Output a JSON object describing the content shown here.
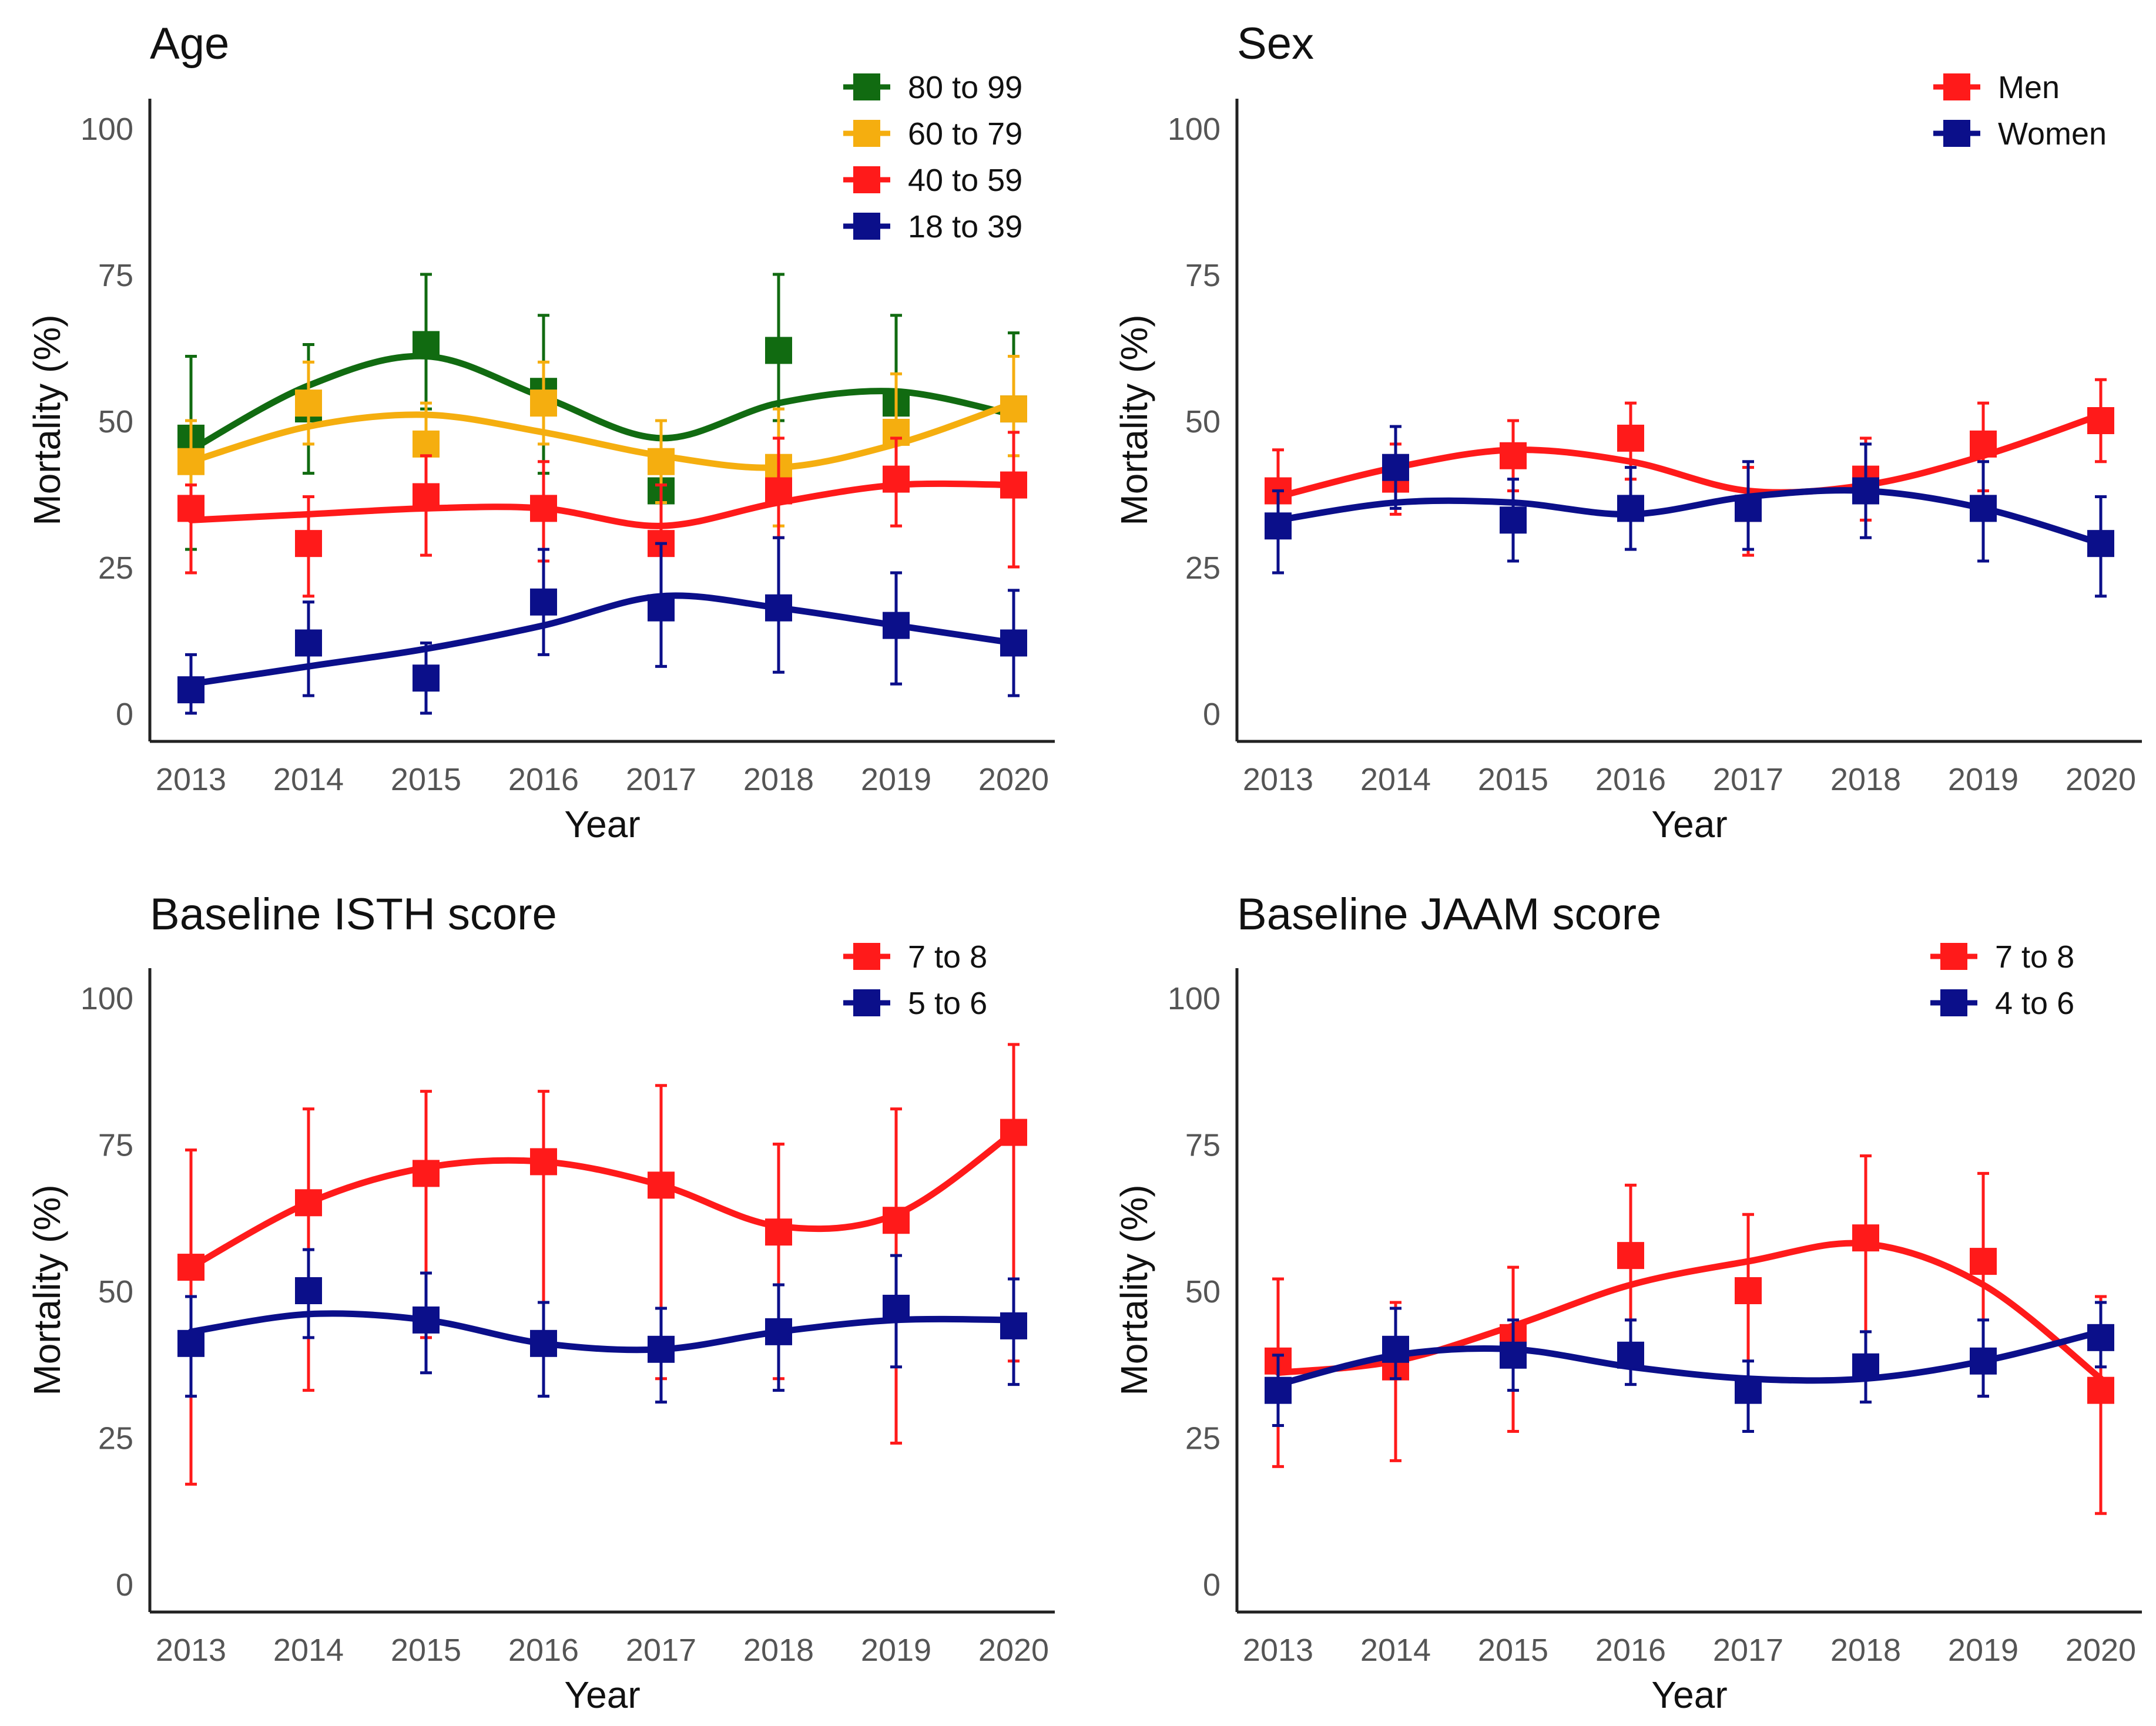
{
  "figure": {
    "xlabel": "Year",
    "ylabel": "Mortality (%)"
  },
  "chart_data": [
    {
      "type": "line",
      "title": "Age",
      "xlabel": "Year",
      "ylabel": "Mortality (%)",
      "categories": [
        "2013",
        "2014",
        "2015",
        "2016",
        "2017",
        "2018",
        "2019",
        "2020"
      ],
      "yticks": [
        "0",
        "25",
        "50",
        "75",
        "100"
      ],
      "ylim": [
        0,
        100
      ],
      "legend_position": "top-right",
      "series": [
        {
          "name": "80 to 99",
          "color": "#116b11",
          "values": [
            47,
            52,
            63,
            55,
            38,
            62,
            53,
            52
          ],
          "lower": [
            28,
            41,
            52,
            41,
            27,
            50,
            39,
            38
          ],
          "upper": [
            61,
            63,
            75,
            68,
            50,
            75,
            68,
            65
          ],
          "smooth": [
            45,
            56,
            61,
            54,
            47,
            53,
            55,
            51
          ]
        },
        {
          "name": "60 to 79",
          "color": "#f5ae0f",
          "values": [
            43,
            53,
            46,
            53,
            43,
            42,
            48,
            52
          ],
          "lower": [
            36,
            46,
            39,
            46,
            36,
            32,
            39,
            44
          ],
          "upper": [
            50,
            60,
            53,
            60,
            50,
            52,
            58,
            61
          ],
          "smooth": [
            43,
            49,
            51,
            48,
            44,
            42,
            46,
            53
          ]
        },
        {
          "name": "40 to 59",
          "color": "#ff1a1a",
          "values": [
            35,
            29,
            37,
            35,
            29,
            38,
            40,
            39
          ],
          "lower": [
            24,
            20,
            27,
            26,
            20,
            30,
            32,
            25
          ],
          "upper": [
            39,
            37,
            44,
            43,
            39,
            47,
            47,
            48
          ],
          "smooth": [
            33,
            34,
            35,
            35,
            32,
            36,
            39,
            39
          ]
        },
        {
          "name": "18 to 39",
          "color": "#0b0f8a",
          "values": [
            4,
            12,
            6,
            19,
            18,
            18,
            15,
            12
          ],
          "lower": [
            0,
            3,
            0,
            10,
            8,
            7,
            5,
            3
          ],
          "upper": [
            10,
            19,
            12,
            28,
            29,
            30,
            24,
            21
          ],
          "smooth": [
            5,
            8,
            11,
            15,
            20,
            18,
            15,
            12
          ]
        }
      ]
    },
    {
      "type": "line",
      "title": "Sex",
      "xlabel": "Year",
      "ylabel": "Mortality (%)",
      "categories": [
        "2013",
        "2014",
        "2015",
        "2016",
        "2017",
        "2018",
        "2019",
        "2020"
      ],
      "yticks": [
        "0",
        "25",
        "50",
        "75",
        "100"
      ],
      "ylim": [
        0,
        100
      ],
      "legend_position": "top-right",
      "series": [
        {
          "name": "Men",
          "color": "#ff1a1a",
          "values": [
            38,
            40,
            44,
            47,
            35,
            40,
            46,
            50
          ],
          "lower": [
            32,
            34,
            38,
            40,
            27,
            33,
            38,
            43
          ],
          "upper": [
            45,
            46,
            50,
            53,
            42,
            47,
            53,
            57
          ],
          "smooth": [
            37,
            42,
            45,
            43,
            38,
            39,
            44,
            51
          ]
        },
        {
          "name": "Women",
          "color": "#0b0f8a",
          "values": [
            32,
            42,
            33,
            35,
            35,
            38,
            35,
            29
          ],
          "lower": [
            24,
            35,
            26,
            28,
            28,
            30,
            26,
            20
          ],
          "upper": [
            38,
            49,
            40,
            42,
            43,
            46,
            43,
            37
          ],
          "smooth": [
            33,
            36,
            36,
            34,
            37,
            38,
            35,
            29
          ]
        }
      ]
    },
    {
      "type": "line",
      "title": "Baseline ISTH score",
      "xlabel": "Year",
      "ylabel": "Mortality (%)",
      "categories": [
        "2013",
        "2014",
        "2015",
        "2016",
        "2017",
        "2018",
        "2019",
        "2020"
      ],
      "yticks": [
        "0",
        "25",
        "50",
        "75",
        "100"
      ],
      "ylim": [
        0,
        100
      ],
      "legend_position": "top-right",
      "series": [
        {
          "name": "7 to 8",
          "color": "#ff1a1a",
          "values": [
            54,
            65,
            70,
            72,
            68,
            60,
            62,
            77
          ],
          "lower": [
            17,
            33,
            42,
            40,
            35,
            35,
            24,
            38
          ],
          "upper": [
            74,
            81,
            84,
            84,
            85,
            75,
            81,
            92
          ],
          "smooth": [
            54,
            65,
            71,
            72,
            68,
            61,
            63,
            77
          ]
        },
        {
          "name": "5 to 6",
          "color": "#0b0f8a",
          "values": [
            41,
            50,
            45,
            41,
            40,
            43,
            47,
            44
          ],
          "lower": [
            32,
            42,
            36,
            32,
            31,
            33,
            37,
            34
          ],
          "upper": [
            49,
            57,
            53,
            48,
            47,
            51,
            56,
            52
          ],
          "smooth": [
            43,
            46,
            45,
            41,
            40,
            43,
            45,
            45
          ]
        }
      ]
    },
    {
      "type": "line",
      "title": "Baseline JAAM score",
      "xlabel": "Year",
      "ylabel": "Mortality (%)",
      "categories": [
        "2013",
        "2014",
        "2015",
        "2016",
        "2017",
        "2018",
        "2019",
        "2020"
      ],
      "yticks": [
        "0",
        "25",
        "50",
        "75",
        "100"
      ],
      "ylim": [
        0,
        100
      ],
      "legend_position": "top-right",
      "series": [
        {
          "name": "7 to 8",
          "color": "#ff1a1a",
          "values": [
            38,
            37,
            42,
            56,
            50,
            59,
            55,
            33
          ],
          "lower": [
            20,
            21,
            26,
            45,
            35,
            37,
            32,
            12
          ],
          "upper": [
            52,
            48,
            54,
            68,
            63,
            73,
            70,
            49
          ],
          "smooth": [
            36,
            38,
            44,
            51,
            55,
            58,
            51,
            35
          ]
        },
        {
          "name": "4 to 6",
          "color": "#0b0f8a",
          "values": [
            33,
            40,
            39,
            39,
            33,
            37,
            38,
            42
          ],
          "lower": [
            27,
            35,
            33,
            34,
            26,
            31,
            32,
            37
          ],
          "upper": [
            39,
            47,
            45,
            45,
            38,
            43,
            45,
            48
          ],
          "smooth": [
            34,
            39,
            40,
            37,
            35,
            35,
            38,
            43
          ]
        }
      ]
    }
  ]
}
